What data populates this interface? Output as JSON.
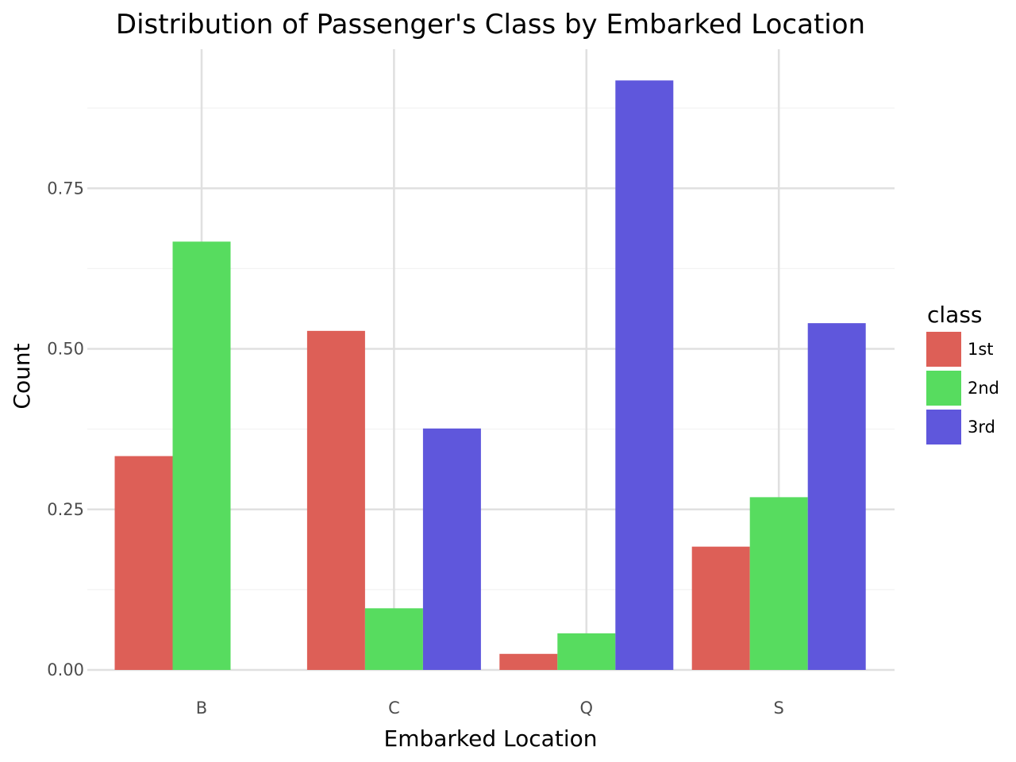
{
  "chart_data": {
    "type": "bar",
    "title": "Distribution of Passenger's Class by Embarked Location",
    "xlabel": "Embarked Location",
    "ylabel": "Count",
    "categories": [
      "B",
      "C",
      "Q",
      "S"
    ],
    "series": [
      {
        "name": "1st",
        "color": "#dd5f57",
        "values": [
          0.333,
          0.528,
          0.025,
          0.192
        ]
      },
      {
        "name": "2nd",
        "color": "#57dc5f",
        "values": [
          0.667,
          0.096,
          0.057,
          0.269
        ]
      },
      {
        "name": "3rd",
        "color": "#5f57dc",
        "values": [
          0.0,
          0.376,
          0.918,
          0.54
        ]
      }
    ],
    "ylim": [
      0,
      0.945
    ],
    "yticks": [
      0.0,
      0.25,
      0.5,
      0.75
    ],
    "ytick_labels": [
      "0.00",
      "0.25",
      "0.50",
      "0.75"
    ],
    "grid": true,
    "legend_title": "class",
    "legend_position": "right"
  }
}
